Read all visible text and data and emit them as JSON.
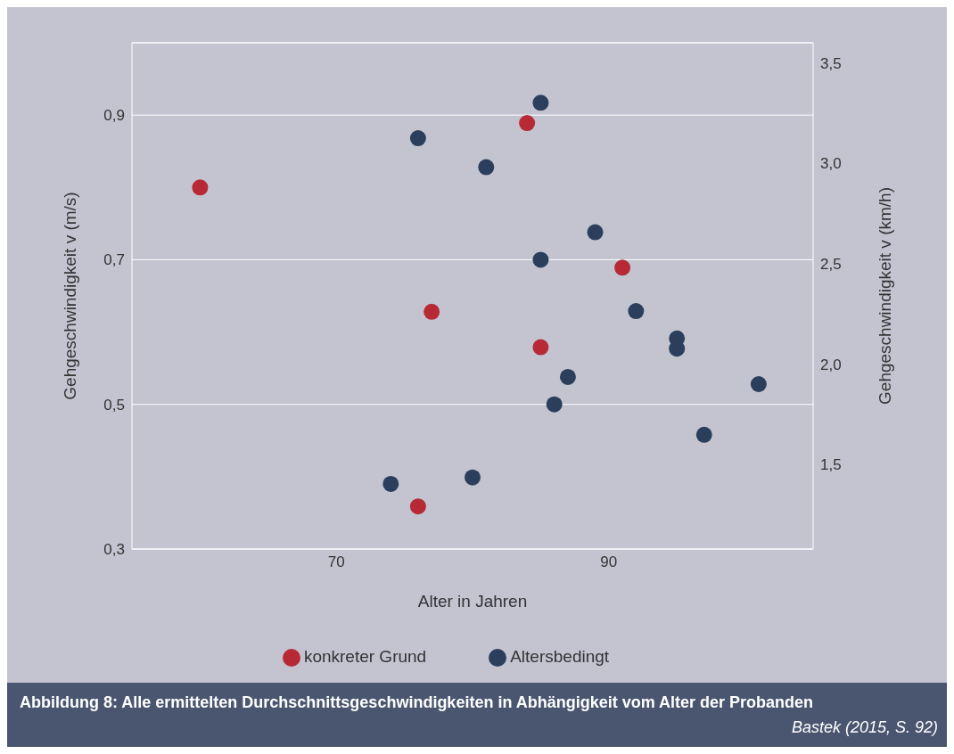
{
  "chart_data": {
    "type": "scatter",
    "title": "Abbildung 8: Alle ermittelten Durchschnittsgeschwindigkeiten in Abhängigkeit vom Alter der Probanden",
    "annotations": [
      "Bastek (2015, S. 92)"
    ],
    "xlabel": "Alter in Jahren",
    "ylabel": "Gehgeschwindigkeit v (m/s)",
    "y2label": "Gehgeschwindigkeit v (km/h)",
    "xlim": [
      55,
      105
    ],
    "xticks": [
      70,
      90
    ],
    "ylim": [
      0.3,
      1.0
    ],
    "yticks": [
      {
        "value": 0.3,
        "label": "0,3"
      },
      {
        "value": 0.5,
        "label": "0,5"
      },
      {
        "value": 0.7,
        "label": "0,7"
      },
      {
        "value": 0.9,
        "label": "0,9"
      }
    ],
    "y2lim": [
      1.08,
      3.6
    ],
    "y2ticks": [
      {
        "value": 1.5,
        "label": "1,5"
      },
      {
        "value": 2.0,
        "label": "2,0"
      },
      {
        "value": 2.5,
        "label": "2,5"
      },
      {
        "value": 3.0,
        "label": "3,0"
      },
      {
        "value": 3.5,
        "label": "3,5"
      }
    ],
    "grid": "y",
    "legend": "bottom",
    "marker": "circle",
    "series": [
      {
        "name": "konkreter Grund",
        "color": "#b72a35",
        "x": [
          60,
          84,
          77,
          85,
          91,
          76
        ],
        "values": [
          0.8,
          0.889,
          0.628,
          0.579,
          0.689,
          0.359
        ]
      },
      {
        "name": "Altersbedingt",
        "color": "#2b3f5c",
        "x": [
          85,
          76,
          81,
          89,
          85,
          92,
          95,
          95,
          87,
          86,
          101,
          97,
          74,
          80
        ],
        "values": [
          0.917,
          0.868,
          0.828,
          0.738,
          0.7,
          0.629,
          0.591,
          0.577,
          0.538,
          0.5,
          0.528,
          0.458,
          0.39,
          0.399
        ]
      }
    ]
  }
}
